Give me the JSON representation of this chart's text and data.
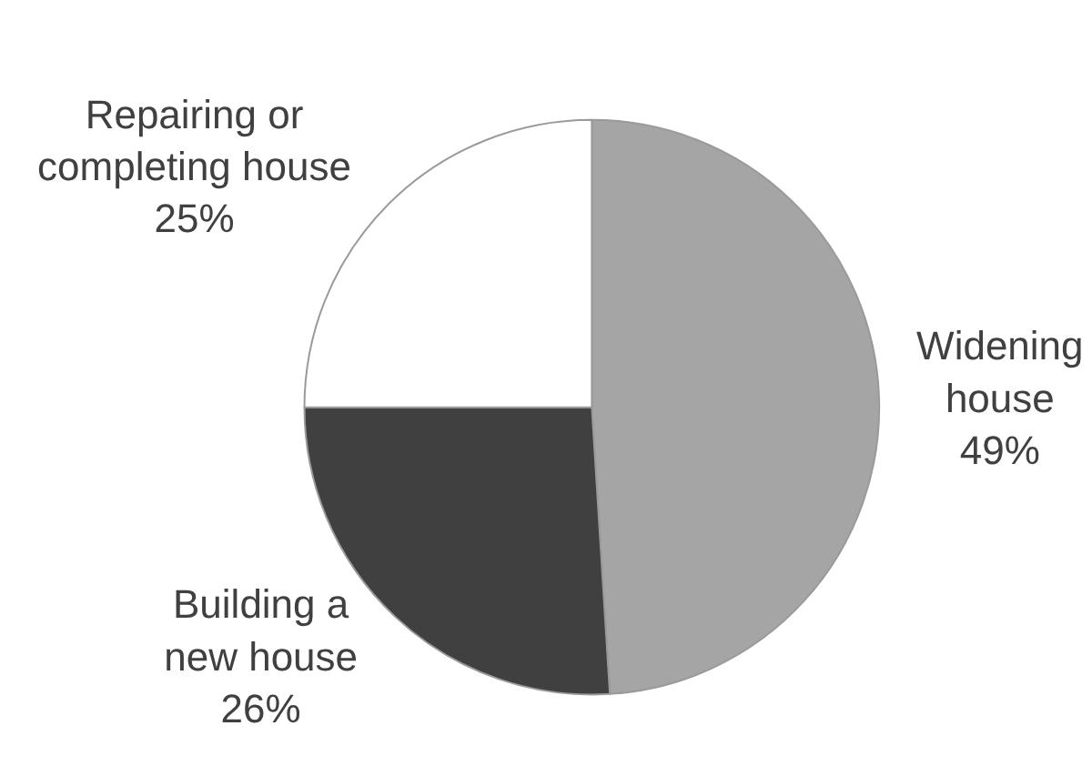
{
  "chart_data": {
    "type": "pie",
    "categories": [
      "Widening house",
      "Building a new house",
      "Repairing or completing house"
    ],
    "values": [
      49,
      26,
      25
    ],
    "value_labels": [
      "49%",
      "26%",
      "25%"
    ],
    "colors": [
      "#a5a5a5",
      "#404040",
      "#ffffff"
    ],
    "legend": false
  }
}
